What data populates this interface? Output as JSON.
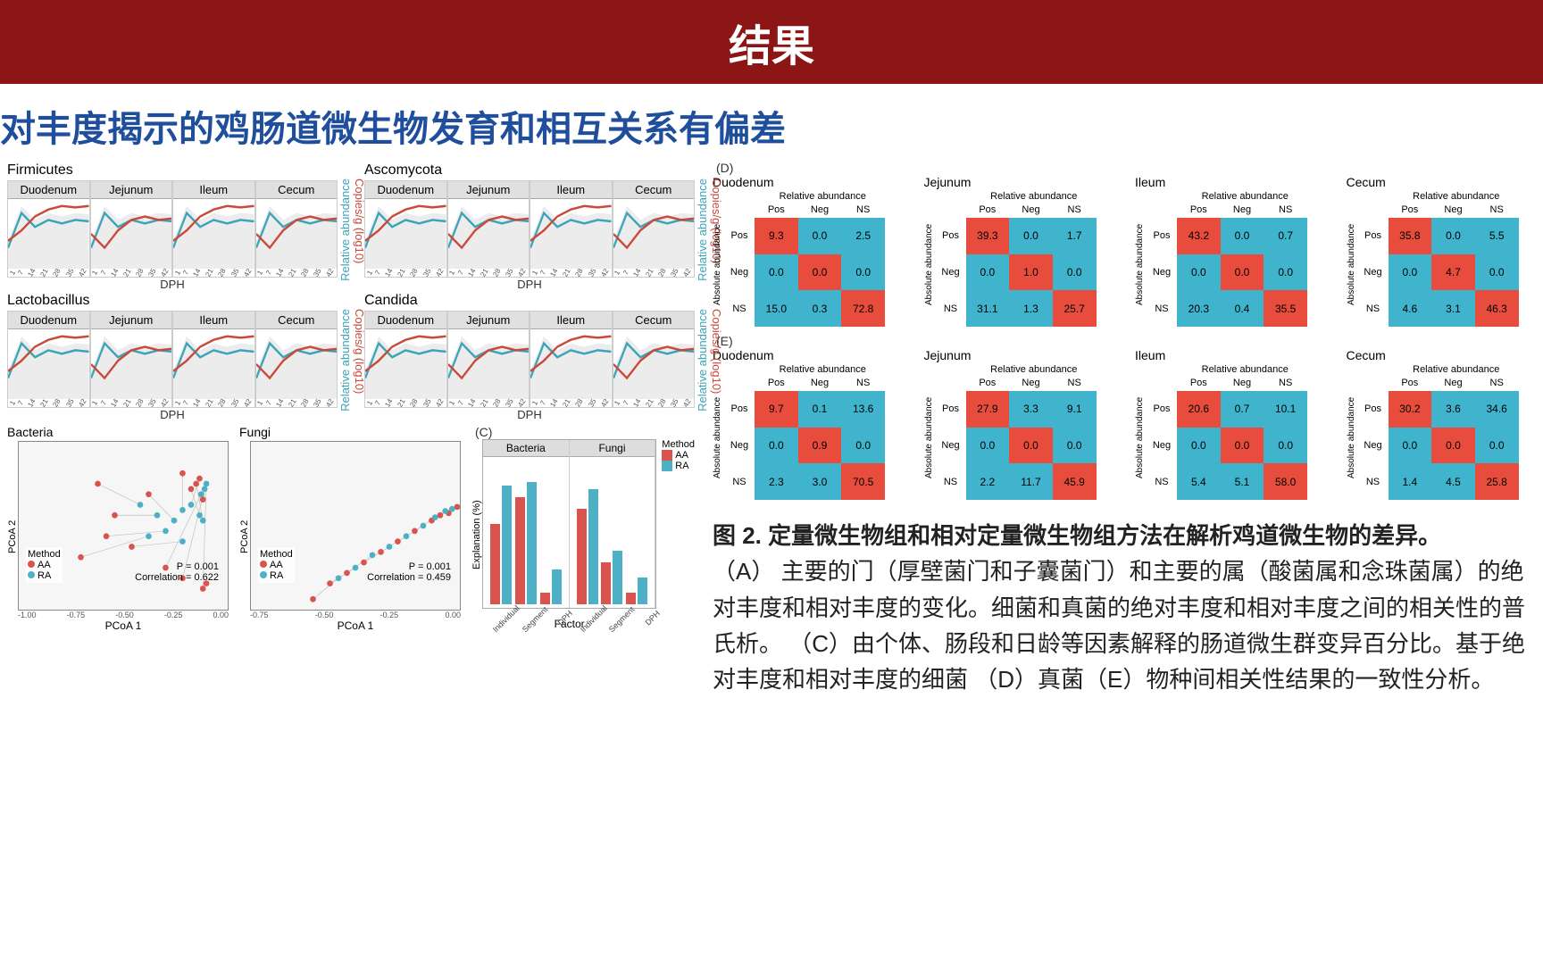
{
  "header": "结果",
  "subtitle": "对丰度揭示的鸡肠道微生物发育和相互关系有偏差",
  "colors": {
    "header_bg": "#8c1515",
    "subtitle_color": "#1f4e9c",
    "line_blue": "#3ba4b8",
    "line_red": "#c94a3b",
    "band_grey": "#c8c8c8",
    "bar_red": "#d9534f",
    "bar_blue": "#4db0c4",
    "hm_red": "#e74c3c",
    "hm_blue": "#3fb4cc",
    "facet_header": "#e0e0e0"
  },
  "panelA": {
    "groups": [
      {
        "name": "Firmicutes",
        "segments": [
          "Duodenum",
          "Jejunum",
          "Ileum",
          "Cecum"
        ]
      },
      {
        "name": "Ascomycota",
        "segments": [
          "Duodenum",
          "Jejunum",
          "Ileum",
          "Cecum"
        ]
      },
      {
        "name": "Lactobacillus",
        "segments": [
          "Duodenum",
          "Jejunum",
          "Ileum",
          "Cecum"
        ]
      },
      {
        "name": "Candida",
        "segments": [
          "Duodenum",
          "Jejunum",
          "Ileum",
          "Cecum"
        ]
      }
    ],
    "xlabel": "DPH",
    "xticks": [
      "1",
      "7",
      "14",
      "21",
      "28",
      "35",
      "42"
    ],
    "ylabel_left": "Relative abundance",
    "ylabel_right": "Copies/g (log10)",
    "sample_blue": [
      0.3,
      0.8,
      0.6,
      0.7,
      0.65,
      0.7,
      0.68
    ],
    "sample_red": [
      0.4,
      0.55,
      0.75,
      0.85,
      0.9,
      0.88,
      0.9
    ],
    "sample_red2": [
      0.5,
      0.3,
      0.55,
      0.7,
      0.75,
      0.7,
      0.72
    ]
  },
  "panelB": {
    "plots": [
      {
        "title": "Bacteria",
        "p": "P = 0.001",
        "corr": "Correlation = 0.622",
        "pts_aa": [
          [
            -0.6,
            0.4
          ],
          [
            -0.5,
            0.1
          ],
          [
            -0.3,
            0.3
          ],
          [
            -0.1,
            0.5
          ],
          [
            0.0,
            0.45
          ],
          [
            -0.05,
            0.35
          ],
          [
            -0.02,
            0.4
          ],
          [
            -0.7,
            -0.3
          ],
          [
            -0.55,
            -0.1
          ],
          [
            -0.4,
            -0.2
          ],
          [
            -0.2,
            -0.4
          ],
          [
            -0.1,
            -0.5
          ],
          [
            0.02,
            -0.6
          ],
          [
            0.04,
            -0.55
          ],
          [
            0.01,
            0.3
          ],
          [
            0.02,
            0.25
          ]
        ],
        "pts_ra": [
          [
            -0.35,
            0.2
          ],
          [
            -0.25,
            0.1
          ],
          [
            -0.15,
            0.05
          ],
          [
            -0.1,
            0.15
          ],
          [
            -0.05,
            0.2
          ],
          [
            0.0,
            0.1
          ],
          [
            0.02,
            0.05
          ],
          [
            -0.3,
            -0.1
          ],
          [
            -0.2,
            -0.05
          ],
          [
            -0.1,
            -0.15
          ],
          [
            0.01,
            0.3
          ],
          [
            0.03,
            0.35
          ],
          [
            0.04,
            0.4
          ]
        ]
      },
      {
        "title": "Fungi",
        "p": "P = 0.001",
        "corr": "Correlation = 0.459",
        "pts_aa": [
          [
            -0.7,
            -0.7
          ],
          [
            -0.6,
            -0.55
          ],
          [
            -0.5,
            -0.45
          ],
          [
            -0.4,
            -0.35
          ],
          [
            -0.3,
            -0.25
          ],
          [
            -0.2,
            -0.15
          ],
          [
            -0.1,
            -0.05
          ],
          [
            0.0,
            0.05
          ],
          [
            0.05,
            0.1
          ],
          [
            0.1,
            0.12
          ],
          [
            0.15,
            0.18
          ]
        ],
        "pts_ra": [
          [
            -0.55,
            -0.5
          ],
          [
            -0.45,
            -0.4
          ],
          [
            -0.35,
            -0.28
          ],
          [
            -0.25,
            -0.2
          ],
          [
            -0.15,
            -0.1
          ],
          [
            -0.05,
            0.0
          ],
          [
            0.02,
            0.08
          ],
          [
            0.08,
            0.14
          ],
          [
            0.12,
            0.16
          ]
        ]
      }
    ],
    "xlabel": "PCoA 1",
    "ylabel": "PCoA 2",
    "legend_title": "Method",
    "legend_items": [
      {
        "label": "AA",
        "color": "#d9534f"
      },
      {
        "label": "RA",
        "color": "#4db0c4"
      }
    ],
    "xticks": [
      "-1.00",
      "-0.75",
      "-0.50",
      "-0.25",
      "0.00"
    ],
    "xticks2": [
      "-0.75",
      "-0.50",
      "-0.25",
      "0.00"
    ]
  },
  "panelC": {
    "label": "(C)",
    "facets": [
      "Bacteria",
      "Fungi"
    ],
    "factors": [
      "Individual",
      "Segment",
      "DPH"
    ],
    "xlabel": "Factor",
    "ylabel": "Explanation (%)",
    "ymax": 35,
    "data": {
      "Bacteria": {
        "AA": [
          21,
          28,
          3
        ],
        "RA": [
          31,
          32,
          9
        ]
      },
      "Fungi": {
        "AA": [
          25,
          11,
          3
        ],
        "RA": [
          30,
          14,
          7
        ]
      }
    },
    "legend_title": "Method",
    "legend": [
      {
        "label": "AA",
        "color": "#d9534f"
      },
      {
        "label": "RA",
        "color": "#4db0c4"
      }
    ]
  },
  "panelD": {
    "label": "(D)",
    "cols": [
      "Pos",
      "Neg",
      "NS"
    ],
    "rows": [
      "Pos",
      "Neg",
      "NS"
    ],
    "xlabel": "Relative abundance",
    "ylabel": "Absolute abundance",
    "sections": [
      {
        "title": "Duodenum",
        "cells": [
          [
            9.3,
            0.0,
            2.5
          ],
          [
            0.0,
            0.0,
            0.0
          ],
          [
            15.0,
            0.3,
            72.8
          ]
        ],
        "colors": [
          [
            "r",
            "b",
            "b"
          ],
          [
            "b",
            "r",
            "b"
          ],
          [
            "b",
            "b",
            "r"
          ]
        ]
      },
      {
        "title": "Jejunum",
        "cells": [
          [
            39.3,
            0.0,
            1.7
          ],
          [
            0.0,
            1.0,
            0.0
          ],
          [
            31.1,
            1.3,
            25.7
          ]
        ],
        "colors": [
          [
            "r",
            "b",
            "b"
          ],
          [
            "b",
            "r",
            "b"
          ],
          [
            "b",
            "b",
            "r"
          ]
        ]
      },
      {
        "title": "Ileum",
        "cells": [
          [
            43.2,
            0.0,
            0.7
          ],
          [
            0.0,
            0.0,
            0.0
          ],
          [
            20.3,
            0.4,
            35.5
          ]
        ],
        "colors": [
          [
            "r",
            "b",
            "b"
          ],
          [
            "b",
            "r",
            "b"
          ],
          [
            "b",
            "b",
            "r"
          ]
        ]
      },
      {
        "title": "Cecum",
        "cells": [
          [
            35.8,
            0.0,
            5.5
          ],
          [
            0.0,
            4.7,
            0.0
          ],
          [
            4.6,
            3.1,
            46.3
          ]
        ],
        "colors": [
          [
            "r",
            "b",
            "b"
          ],
          [
            "b",
            "r",
            "b"
          ],
          [
            "b",
            "b",
            "r"
          ]
        ]
      }
    ]
  },
  "panelE": {
    "label": "(E)",
    "sections": [
      {
        "title": "Duodenum",
        "cells": [
          [
            9.7,
            0.1,
            13.6
          ],
          [
            0.0,
            0.9,
            0.0
          ],
          [
            2.3,
            3.0,
            70.5
          ]
        ],
        "colors": [
          [
            "r",
            "b",
            "b"
          ],
          [
            "b",
            "r",
            "b"
          ],
          [
            "b",
            "b",
            "r"
          ]
        ]
      },
      {
        "title": "Jejunum",
        "cells": [
          [
            27.9,
            3.3,
            9.1
          ],
          [
            0.0,
            0.0,
            0.0
          ],
          [
            2.2,
            11.7,
            45.9
          ]
        ],
        "colors": [
          [
            "r",
            "b",
            "b"
          ],
          [
            "b",
            "r",
            "b"
          ],
          [
            "b",
            "b",
            "r"
          ]
        ]
      },
      {
        "title": "Ileum",
        "cells": [
          [
            20.6,
            0.7,
            10.1
          ],
          [
            0.0,
            0.0,
            0.0
          ],
          [
            5.4,
            5.1,
            58.0
          ]
        ],
        "colors": [
          [
            "r",
            "b",
            "b"
          ],
          [
            "b",
            "r",
            "b"
          ],
          [
            "b",
            "b",
            "r"
          ]
        ]
      },
      {
        "title": "Cecum",
        "cells": [
          [
            30.2,
            3.6,
            34.6
          ],
          [
            0.0,
            0.0,
            0.0
          ],
          [
            1.4,
            4.5,
            25.8
          ]
        ],
        "colors": [
          [
            "r",
            "b",
            "b"
          ],
          [
            "b",
            "r",
            "b"
          ],
          [
            "b",
            "b",
            "r"
          ]
        ]
      }
    ]
  },
  "caption": {
    "title": "图 2. 定量微生物组和相对定量微生物组方法在解析鸡道微生物的差异。",
    "body": "（A） 主要的门（厚壁菌门和子囊菌门）和主要的属（酸菌属和念珠菌属）的绝对丰度和相对丰度的变化。细菌和真菌的绝对丰度和相对丰度之间的相关性的普氏析。 （C）由个体、肠段和日龄等因素解释的肠道微生群变异百分比。基于绝对丰度和相对丰度的细菌 （D）真菌（E）物种间相关性结果的一致性分析。"
  }
}
